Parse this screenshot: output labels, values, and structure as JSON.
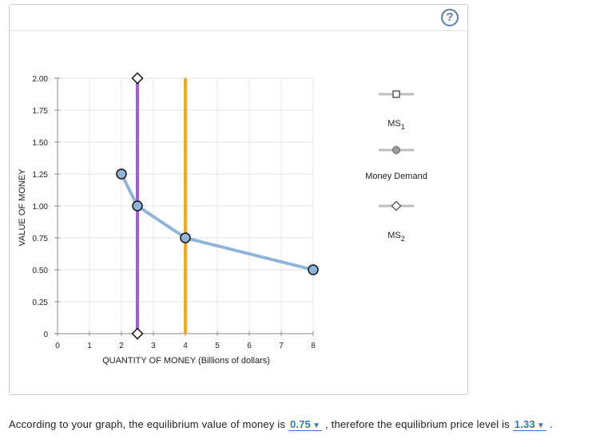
{
  "help_icon": "?",
  "chart_data": {
    "type": "line",
    "xlabel": "QUANTITY OF MONEY (Billions of dollars)",
    "ylabel": "VALUE OF MONEY",
    "xlim": [
      0,
      8
    ],
    "ylim": [
      0,
      2.0
    ],
    "x_ticks": [
      0,
      1,
      2,
      3,
      4,
      5,
      6,
      7,
      8
    ],
    "x_tick_labels": [
      "0",
      "1",
      "2",
      "3",
      "4",
      "5",
      "6",
      "7",
      "8"
    ],
    "y_ticks": [
      0,
      0.25,
      0.5,
      0.75,
      1.0,
      1.25,
      1.5,
      1.75,
      2.0
    ],
    "y_tick_labels": [
      "0",
      "0.25",
      "0.50",
      "0.75",
      "1.00",
      "1.25",
      "1.50",
      "1.75",
      "2.00"
    ],
    "grid": true,
    "series": [
      {
        "name": "MS1",
        "kind": "vertical",
        "x": 4,
        "color": "#f5a623"
      },
      {
        "name": "Money Demand",
        "kind": "curve",
        "color": "#8fb4d9",
        "points": [
          {
            "x": 2.0,
            "y": 1.25
          },
          {
            "x": 2.5,
            "y": 1.0
          },
          {
            "x": 4.0,
            "y": 0.75
          },
          {
            "x": 8.0,
            "y": 0.5
          }
        ]
      },
      {
        "name": "MS2",
        "kind": "vertical",
        "x": 2.5,
        "color": "#a35fd0",
        "endpoints": [
          {
            "x": 2.5,
            "y": 0
          },
          {
            "x": 2.5,
            "y": 2.0
          }
        ]
      }
    ],
    "legend": [
      {
        "label_main": "MS",
        "label_sub": "1",
        "marker": "square"
      },
      {
        "label_main": "Money Demand",
        "label_sub": "",
        "marker": "circle"
      },
      {
        "label_main": "MS",
        "label_sub": "2",
        "marker": "diamond"
      }
    ]
  },
  "question": {
    "part1": "According to your graph, the equilibrium value of money is",
    "value_answer": "0.75",
    "part2": ", therefore the equilibrium price level is",
    "price_answer": "1.33",
    "part3": "."
  },
  "colors": {
    "accent": "#3a76b8",
    "ms1": "#f5a623",
    "ms2": "#a35fd0",
    "demand": "#8fb4d9"
  }
}
